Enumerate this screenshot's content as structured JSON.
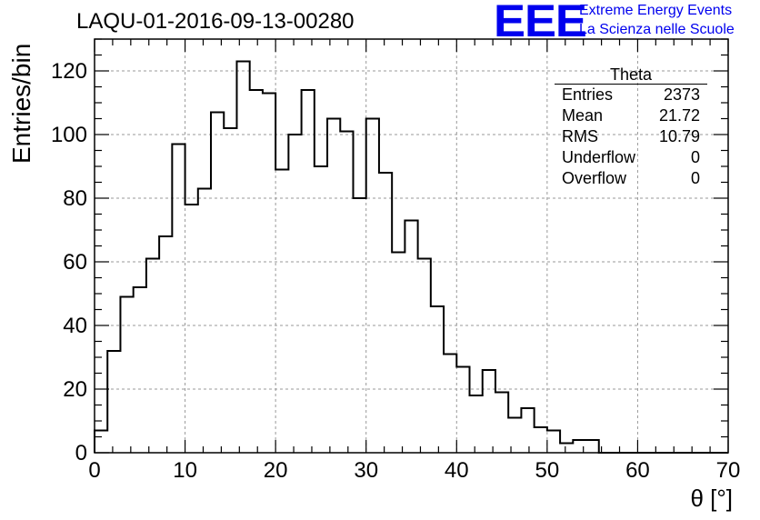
{
  "header": {
    "title": "LAQU-01-2016-09-13-00280",
    "logo_mark": "EEE",
    "logo_line1": "Extreme Energy Events",
    "logo_line2": "La Scienza nelle Scuole",
    "logo_color": "#0000ee"
  },
  "stats_box": {
    "name": "Theta",
    "rows": [
      {
        "label": "Entries",
        "value": "2373"
      },
      {
        "label": "Mean",
        "value": "21.72"
      },
      {
        "label": "RMS",
        "value": "10.79"
      },
      {
        "label": "Underflow",
        "value": "0"
      },
      {
        "label": "Overflow",
        "value": "0"
      }
    ]
  },
  "chart_data": {
    "type": "bar",
    "title": "LAQU-01-2016-09-13-00280",
    "xlabel": "θ [°]",
    "ylabel": "Entries/bin",
    "xlim": [
      0,
      70
    ],
    "ylim": [
      0,
      130
    ],
    "grid": true,
    "bin_width": 1.42857,
    "x_ticks": [
      0,
      10,
      20,
      30,
      40,
      50,
      60,
      70
    ],
    "y_ticks": [
      0,
      20,
      40,
      60,
      80,
      100,
      120
    ],
    "values": [
      7,
      32,
      49,
      52,
      61,
      68,
      97,
      78,
      83,
      107,
      102,
      123,
      114,
      113,
      89,
      100,
      114,
      90,
      105,
      101,
      80,
      105,
      88,
      63,
      73,
      61,
      46,
      31,
      27,
      18,
      26,
      19,
      11,
      14,
      8,
      7,
      3,
      4,
      4,
      0,
      0,
      0,
      0,
      0,
      0,
      0,
      0,
      0,
      0
    ]
  }
}
